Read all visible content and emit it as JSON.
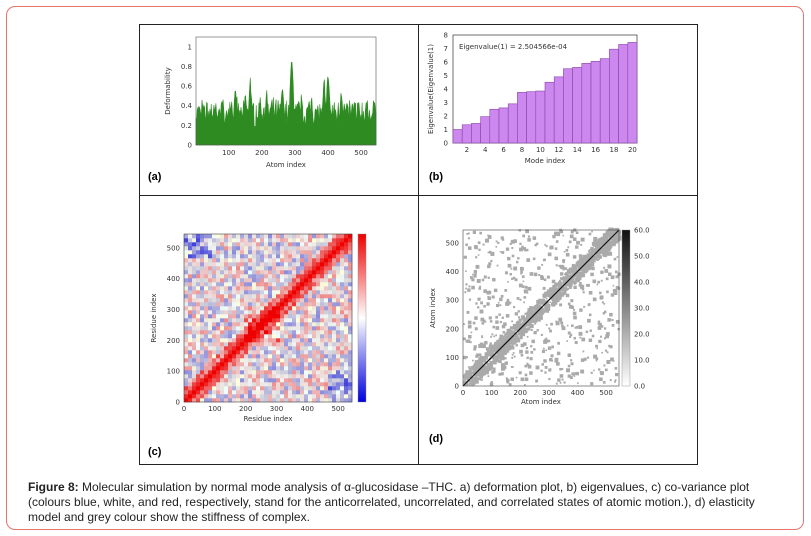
{
  "panels": {
    "a": {
      "label": "(a)",
      "chart_data": {
        "type": "area",
        "xlabel": "Atom index",
        "ylabel": "Deformability",
        "xlim": [
          1,
          545
        ],
        "ylim": [
          0,
          1.1
        ],
        "xticks": [
          "100",
          "200",
          "300",
          "400",
          "500"
        ],
        "yticks": [
          "0",
          "0.2",
          "0.4",
          "0.6",
          "0.8",
          "1"
        ],
        "baseline": 0.27,
        "peaks": [
          {
            "x": 20,
            "y": 0.52
          },
          {
            "x": 55,
            "y": 0.48
          },
          {
            "x": 80,
            "y": 0.55
          },
          {
            "x": 120,
            "y": 0.68
          },
          {
            "x": 150,
            "y": 0.6
          },
          {
            "x": 165,
            "y": 0.72
          },
          {
            "x": 195,
            "y": 0.55
          },
          {
            "x": 215,
            "y": 0.62
          },
          {
            "x": 262,
            "y": 0.68
          },
          {
            "x": 290,
            "y": 0.95
          },
          {
            "x": 320,
            "y": 0.58
          },
          {
            "x": 350,
            "y": 0.55
          },
          {
            "x": 388,
            "y": 0.75
          },
          {
            "x": 400,
            "y": 0.8
          },
          {
            "x": 440,
            "y": 0.62
          },
          {
            "x": 480,
            "y": 0.55
          },
          {
            "x": 515,
            "y": 0.5
          },
          {
            "x": 540,
            "y": 0.48
          }
        ],
        "color": "#2e8b22"
      }
    },
    "b": {
      "label": "(b)",
      "chart_data": {
        "type": "bar",
        "title": "Eigenvalue(1) = 2.504566e-04",
        "xlabel": "Mode index",
        "ylabel": "Eigenvalue(Eigenvalue(1)",
        "x": [
          1,
          2,
          3,
          4,
          5,
          6,
          7,
          8,
          9,
          10,
          11,
          12,
          13,
          14,
          15,
          16,
          17,
          18,
          19,
          20
        ],
        "values": [
          1.0,
          1.35,
          1.45,
          1.95,
          2.5,
          2.6,
          2.9,
          3.75,
          3.8,
          3.85,
          4.5,
          4.9,
          5.5,
          5.6,
          5.9,
          6.05,
          6.25,
          6.95,
          7.3,
          7.45
        ],
        "xticks": [
          "2",
          "4",
          "6",
          "8",
          "10",
          "12",
          "14",
          "16",
          "18",
          "20"
        ],
        "yticks": [
          "0",
          "1",
          "2",
          "3",
          "4",
          "5",
          "6",
          "7",
          "8"
        ],
        "ylim": [
          0,
          8
        ],
        "color": "#cc88ee"
      }
    },
    "c": {
      "label": "(c)",
      "chart_data": {
        "type": "heatmap",
        "xlabel": "Residue index",
        "ylabel": "Residue index",
        "xticks": [
          "0",
          "100",
          "200",
          "300",
          "400",
          "500"
        ],
        "yticks": [
          "0",
          "100",
          "200",
          "300",
          "400",
          "500"
        ],
        "range": [
          0,
          545
        ],
        "colors": {
          "negative": "#0000dd",
          "zero": "#ffffff",
          "positive": "#ee0000"
        }
      }
    },
    "d": {
      "label": "(d)",
      "chart_data": {
        "type": "heatmap",
        "xlabel": "Atom index",
        "ylabel": "Atom index",
        "xticks": [
          "0",
          "100",
          "200",
          "300",
          "400",
          "500"
        ],
        "yticks": [
          "0",
          "100",
          "200",
          "300",
          "400",
          "500"
        ],
        "range": [
          0,
          545
        ],
        "colorbar_ticks": [
          "0.0",
          "10.0",
          "20.0",
          "30.0",
          "40.0",
          "50.0",
          "60.0"
        ],
        "colors": {
          "low": "#ffffff",
          "high": "#111111",
          "point": "#aaaaaa"
        }
      }
    }
  },
  "caption": {
    "bold": "Figure 8:",
    "text": " Molecular simulation by normal mode analysis of α-glucosidase –THC. a) deformation plot, b) eigenvalues, c) co-variance plot (colours blue, white, and red, respectively, stand for the anticorrelated, uncorrelated, and correlated states of atomic motion.), d) elasticity model and grey colour show the stiffness of complex."
  }
}
